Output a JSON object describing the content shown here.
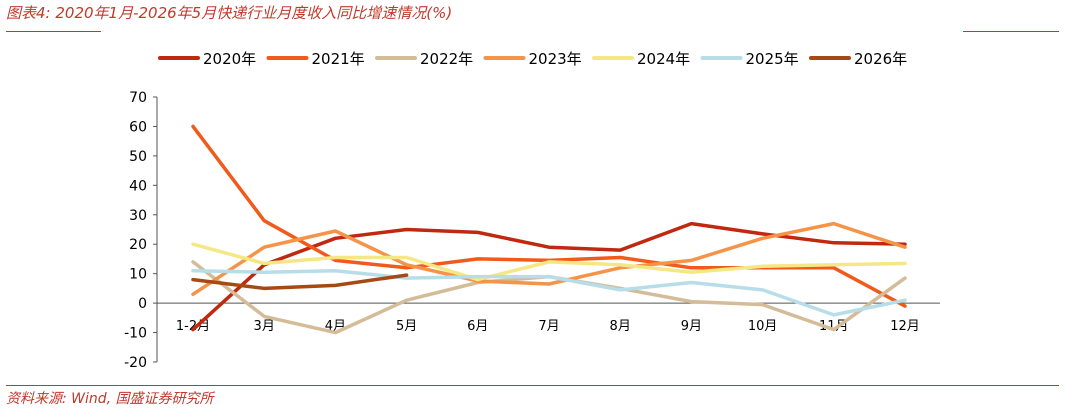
{
  "header": {
    "title": "图表4: 2020年1月-2026年5月快递行业月度收入同比增速情况(%)"
  },
  "footer": {
    "source": "资料来源: Wind, 国盛证券研究所"
  },
  "chart_data": {
    "type": "line",
    "title": "",
    "xlabel": "",
    "ylabel": "",
    "categories": [
      "1-2月",
      "3月",
      "4月",
      "5月",
      "6月",
      "7月",
      "8月",
      "9月",
      "10月",
      "11月",
      "12月"
    ],
    "y_ticks": [
      "70",
      "60",
      "50",
      "40",
      "30",
      "20",
      "10",
      "0",
      "-10",
      "-20"
    ],
    "ylim": [
      -20,
      70
    ],
    "grid": false,
    "legend_position": "top",
    "series": [
      {
        "name": "2020年",
        "color": "#c0280f",
        "values": [
          -9,
          13,
          22,
          25,
          24,
          19,
          18,
          27,
          23.5,
          20.5,
          20
        ]
      },
      {
        "name": "2021年",
        "color": "#f05a1a",
        "values": [
          60,
          28,
          14.5,
          12,
          15,
          14.5,
          15.5,
          12,
          12,
          12,
          -1
        ]
      },
      {
        "name": "2022年",
        "color": "#d4bc98",
        "values": [
          14,
          -4.5,
          -10,
          1,
          7,
          9,
          5,
          0.5,
          -0.5,
          -9,
          8.5
        ]
      },
      {
        "name": "2023年",
        "color": "#f59448",
        "values": [
          3,
          19,
          24.5,
          13,
          7.5,
          6.5,
          12,
          14.5,
          22,
          27,
          19
        ]
      },
      {
        "name": "2024年",
        "color": "#f5e884",
        "values": [
          20,
          13.5,
          15.5,
          15.5,
          8,
          14,
          13,
          10.5,
          12.5,
          13,
          13.5
        ]
      },
      {
        "name": "2025年",
        "color": "#b7dde8",
        "values": [
          11,
          10.5,
          11,
          8.5,
          9,
          9,
          4.5,
          7,
          4.5,
          -4,
          1
        ]
      },
      {
        "name": "2026年",
        "color": "#a54a14",
        "values": [
          8,
          5,
          6,
          9.5,
          null,
          null,
          null,
          null,
          null,
          null,
          null
        ]
      }
    ]
  }
}
